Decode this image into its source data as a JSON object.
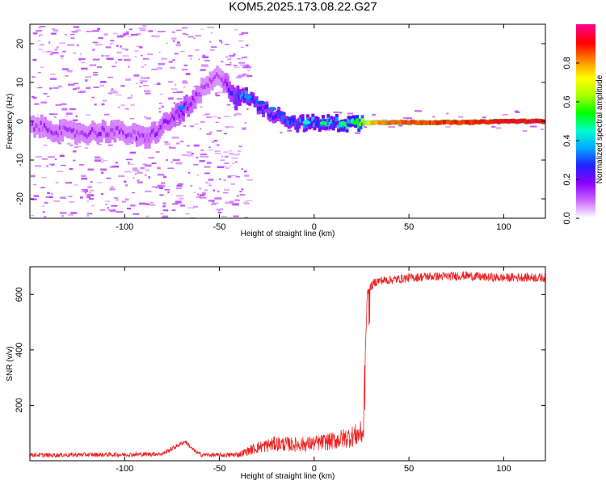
{
  "title": "KOM5.2025.173.08.22.G27",
  "chart_data": [
    {
      "type": "heatmap",
      "xlabel": "Height of straight line (km)",
      "ylabel": "Frequency (Hz)",
      "xlim": [
        -150,
        122
      ],
      "ylim": [
        -25,
        25
      ],
      "xticks": [
        -100,
        -50,
        0,
        50,
        100
      ],
      "yticks": [
        -20,
        -10,
        0,
        10,
        20
      ],
      "xtick_labels": [
        "-100",
        "-50",
        "0",
        "50",
        "100"
      ],
      "ytick_labels": [
        "-20",
        "-10",
        "0",
        "10",
        "20"
      ],
      "colorbar": {
        "label": "Normalized spectral amplitude",
        "range": [
          0,
          1
        ],
        "ticks": [
          0.0,
          0.2,
          0.4,
          0.6,
          0.8
        ],
        "tick_labels": [
          "0.0",
          "0.2",
          "0.4",
          "0.6",
          "0.8"
        ],
        "colors": [
          "#ffffff",
          "#cc66ff",
          "#8800ff",
          "#2222ff",
          "#00aaff",
          "#00ffcc",
          "#00ff00",
          "#aaff00",
          "#ffff00",
          "#ff8800",
          "#ff0000",
          "#ff0088"
        ]
      },
      "ridge": [
        {
          "x": -150,
          "y": -1,
          "a": 0.12
        },
        {
          "x": -140,
          "y": -2,
          "a": 0.14
        },
        {
          "x": -130,
          "y": -3,
          "a": 0.13
        },
        {
          "x": -120,
          "y": -3,
          "a": 0.13
        },
        {
          "x": -110,
          "y": -2.5,
          "a": 0.14
        },
        {
          "x": -100,
          "y": -3,
          "a": 0.13
        },
        {
          "x": -90,
          "y": -4.5,
          "a": 0.14
        },
        {
          "x": -85,
          "y": -3,
          "a": 0.15
        },
        {
          "x": -80,
          "y": -1,
          "a": 0.15
        },
        {
          "x": -75,
          "y": 1,
          "a": 0.16
        },
        {
          "x": -70,
          "y": 3,
          "a": 0.2
        },
        {
          "x": -65,
          "y": 4.5,
          "a": 0.17
        },
        {
          "x": -60,
          "y": 8,
          "a": 0.12
        },
        {
          "x": -55,
          "y": 10,
          "a": 0.12
        },
        {
          "x": -50,
          "y": 12,
          "a": 0.11
        },
        {
          "x": -42,
          "y": 6,
          "a": 0.28
        },
        {
          "x": -36,
          "y": 6.5,
          "a": 0.32
        },
        {
          "x": -30,
          "y": 4,
          "a": 0.25
        },
        {
          "x": -25,
          "y": 2.5,
          "a": 0.24
        },
        {
          "x": -20,
          "y": 1.5,
          "a": 0.26
        },
        {
          "x": -15,
          "y": 0.5,
          "a": 0.28
        },
        {
          "x": -10,
          "y": -0.5,
          "a": 0.3
        },
        {
          "x": -5,
          "y": -0.5,
          "a": 0.33
        },
        {
          "x": 0,
          "y": -0.5,
          "a": 0.35
        },
        {
          "x": 10,
          "y": -0.5,
          "a": 0.38
        },
        {
          "x": 20,
          "y": -0.5,
          "a": 0.42
        },
        {
          "x": 30,
          "y": -0.3,
          "a": 0.8
        },
        {
          "x": 40,
          "y": -0.3,
          "a": 0.88
        },
        {
          "x": 60,
          "y": -0.3,
          "a": 0.9
        },
        {
          "x": 80,
          "y": -0.3,
          "a": 0.92
        },
        {
          "x": 100,
          "y": 0,
          "a": 0.95
        },
        {
          "x": 122,
          "y": 0,
          "a": 0.97
        }
      ]
    },
    {
      "type": "line",
      "xlabel": "Height of straight line (km)",
      "ylabel": "SNR (v/v)",
      "xlim": [
        -150,
        122
      ],
      "ylim": [
        0,
        700
      ],
      "xticks": [
        -100,
        -50,
        0,
        50,
        100
      ],
      "yticks": [
        200,
        400,
        600
      ],
      "xtick_labels": [
        "-100",
        "-50",
        "0",
        "50",
        "100"
      ],
      "ytick_labels": [
        "200",
        "400",
        "600"
      ],
      "line_color": "#ee2222",
      "x": [
        -150,
        -140,
        -120,
        -100,
        -80,
        -72,
        -68,
        -64,
        -60,
        -50,
        -40,
        -30,
        -20,
        -10,
        0,
        10,
        20,
        26,
        27,
        28,
        29,
        30,
        32,
        35,
        40,
        50,
        60,
        70,
        80,
        90,
        100,
        110,
        122
      ],
      "y": [
        22,
        20,
        22,
        22,
        25,
        55,
        70,
        40,
        22,
        20,
        22,
        48,
        62,
        58,
        62,
        72,
        88,
        102,
        380,
        600,
        620,
        630,
        645,
        650,
        652,
        660,
        665,
        665,
        668,
        662,
        660,
        662,
        660
      ]
    }
  ]
}
